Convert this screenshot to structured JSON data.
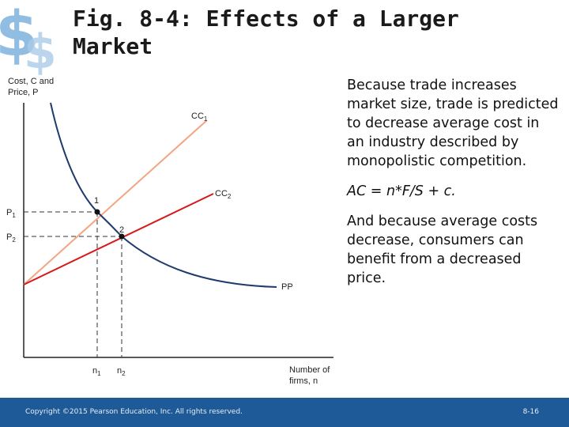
{
  "title": "Fig. 8-4: Effects of a Larger Market",
  "diagram": {
    "y_axis_label_line1": "Cost, C and",
    "y_axis_label_line2": "Price, P",
    "x_axis_label_line1": "Number of",
    "x_axis_label_line2": "firms, n",
    "curves": {
      "cc1": {
        "base": "CC",
        "sub": "1"
      },
      "cc2": {
        "base": "CC",
        "sub": "2"
      },
      "pp": {
        "base": "PP"
      }
    },
    "points": {
      "p1": "1",
      "p2": "2"
    },
    "y_ticks": {
      "p1": {
        "base": "P",
        "sub": "1"
      },
      "p2": {
        "base": "P",
        "sub": "2"
      }
    },
    "x_ticks": {
      "n1": {
        "base": "n",
        "sub": "1"
      },
      "n2": {
        "base": "n",
        "sub": "2"
      }
    },
    "colors": {
      "cc1": "#f4a582",
      "cc2": "#d7191c",
      "pp": "#1f3b6e",
      "dash": "#333333"
    }
  },
  "text_panel": {
    "para1": "Because trade increases market size, trade is predicted to decrease average cost in an industry described by monopolistic competition.",
    "formula": "AC = n*F/S + c.",
    "para2": "And because average costs decrease, consumers can benefit from a decreased price."
  },
  "footer": {
    "copyright": "Copyright ©2015 Pearson Education, Inc. All rights reserved.",
    "page_number": "8-16",
    "bg_color": "#1e5a97"
  }
}
